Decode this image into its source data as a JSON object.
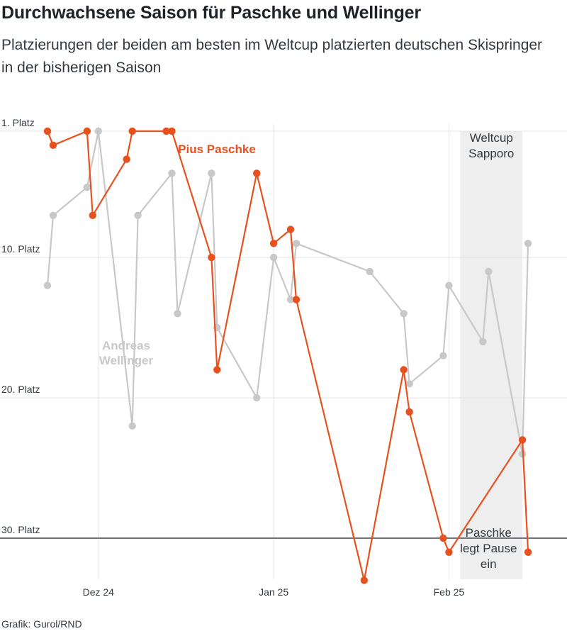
{
  "title": "Durchwachsene Saison für Paschke und Wellinger",
  "subtitle": "Platzierungen der beiden am besten im Weltcup platzierten deutschen Skispringer in der bisherigen Saison",
  "source": "Grafik: Gurol/RND",
  "chart_data": {
    "type": "line",
    "y_axis": {
      "reversed": true,
      "ylim": [
        1,
        35.5
      ],
      "ticks": [
        {
          "value": 1,
          "label": "1. Platz"
        },
        {
          "value": 10,
          "label": "10. Platz"
        },
        {
          "value": 20,
          "label": "20. Platz"
        },
        {
          "value": 30,
          "label": "30. Platz"
        }
      ],
      "reference_line": 30
    },
    "x_axis": {
      "xlim": [
        "2024-11-22",
        "2025-02-20"
      ],
      "ticks": [
        {
          "value": "2024-12-01",
          "label": "Dez 24"
        },
        {
          "value": "2025-01-01",
          "label": "Jan 25"
        },
        {
          "value": "2025-02-01",
          "label": "Feb 25"
        }
      ]
    },
    "grid": true,
    "highlight_band": {
      "x_start": "2025-02-03",
      "x_end": "2025-02-14",
      "label": [
        "Weltcup",
        "Sapporo"
      ]
    },
    "annotations": [
      {
        "text": [
          "Paschke",
          "legt Pause",
          "ein"
        ],
        "x": "2025-02-08",
        "y": 33
      }
    ],
    "series": [
      {
        "name": "Andreas Wellinger",
        "label_lines": [
          "Andreas",
          "Wellinger"
        ],
        "color": "#c8c8c8",
        "points": [
          [
            "2024-11-22",
            12
          ],
          [
            "2024-11-23",
            7
          ],
          [
            "2024-11-29",
            5
          ],
          [
            "2024-12-01",
            1
          ],
          [
            "2024-12-07",
            22
          ],
          [
            "2024-12-08",
            7
          ],
          [
            "2024-12-14",
            4
          ],
          [
            "2024-12-15",
            14
          ],
          [
            "2024-12-21",
            4
          ],
          [
            "2024-12-22",
            15
          ],
          [
            "2024-12-29",
            20
          ],
          [
            "2025-01-01",
            10
          ],
          [
            "2025-01-04",
            13
          ],
          [
            "2025-01-05",
            9
          ],
          [
            "2025-01-18",
            11
          ],
          [
            "2025-01-24",
            14
          ],
          [
            "2025-01-25",
            19
          ],
          [
            "2025-01-31",
            17
          ],
          [
            "2025-02-01",
            12
          ],
          [
            "2025-02-07",
            16
          ],
          [
            "2025-02-08",
            11
          ],
          [
            "2025-02-14",
            24
          ],
          [
            "2025-02-15",
            9
          ]
        ]
      },
      {
        "name": "Pius Paschke",
        "label_lines": [
          "Pius Paschke"
        ],
        "color": "#e8501e",
        "points": [
          [
            "2024-11-22",
            1
          ],
          [
            "2024-11-23",
            2
          ],
          [
            "2024-11-29",
            1
          ],
          [
            "2024-11-30",
            7
          ],
          [
            "2024-12-06",
            3
          ],
          [
            "2024-12-07",
            1
          ],
          [
            "2024-12-13",
            1
          ],
          [
            "2024-12-14",
            1
          ],
          [
            "2024-12-21",
            10
          ],
          [
            "2024-12-22",
            18
          ],
          [
            "2024-12-29",
            4
          ],
          [
            "2025-01-01",
            9
          ],
          [
            "2025-01-04",
            8
          ],
          [
            "2025-01-05",
            13
          ],
          [
            "2025-01-17",
            33
          ],
          [
            "2025-01-24",
            18
          ],
          [
            "2025-01-25",
            21
          ],
          [
            "2025-01-31",
            30
          ],
          [
            "2025-02-01",
            31
          ],
          [
            "2025-02-14",
            23
          ],
          [
            "2025-02-15",
            31
          ]
        ]
      }
    ]
  }
}
